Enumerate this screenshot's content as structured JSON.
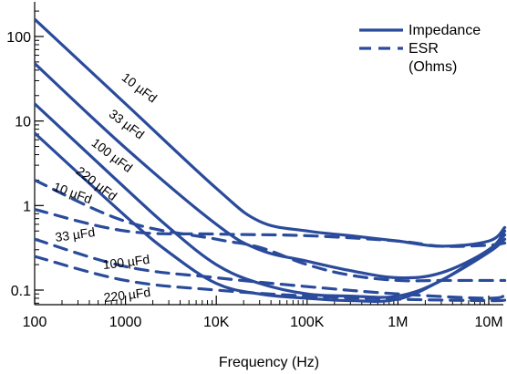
{
  "chart_data": {
    "type": "line",
    "xlabel": "Frequency (Hz)",
    "ylabel": "",
    "x_scale": "log",
    "y_scale": "log",
    "xlim": [
      100,
      15000000
    ],
    "ylim": [
      0.05,
      200
    ],
    "x_ticks": [
      {
        "value": 100,
        "label": "100"
      },
      {
        "value": 1000,
        "label": "1000"
      },
      {
        "value": 10000,
        "label": "10K"
      },
      {
        "value": 100000,
        "label": "100K"
      },
      {
        "value": 1000000,
        "label": "1M"
      },
      {
        "value": 10000000,
        "label": "10M"
      }
    ],
    "y_ticks": [
      {
        "value": 100,
        "label": "100"
      },
      {
        "value": 10,
        "label": "10"
      },
      {
        "value": 1,
        "label": "1"
      },
      {
        "value": 0.1,
        "label": "0.1"
      }
    ],
    "grid": false,
    "legend": {
      "placement": "top-right",
      "entries": [
        {
          "label": "Impedance",
          "style": "solid"
        },
        {
          "label": "ESR",
          "style": "dashed"
        },
        {
          "label": "(Ohms)",
          "style": "none"
        }
      ]
    },
    "color": "#2a4b9b",
    "series": [
      {
        "name": "10 µFd",
        "kind": "impedance",
        "label": "10 µFd",
        "x": [
          100,
          1000,
          10000,
          30000,
          100000,
          300000,
          1000000,
          3000000,
          10000000,
          15000000
        ],
        "y": [
          160,
          16,
          1.6,
          0.65,
          0.5,
          0.44,
          0.38,
          0.33,
          0.38,
          0.55
        ]
      },
      {
        "name": "33 µFd",
        "kind": "impedance",
        "label": "33 µFd",
        "x": [
          100,
          1000,
          10000,
          30000,
          100000,
          300000,
          1000000,
          3000000,
          10000000,
          15000000
        ],
        "y": [
          48,
          4.8,
          0.6,
          0.3,
          0.22,
          0.17,
          0.14,
          0.16,
          0.3,
          0.5
        ]
      },
      {
        "name": "100 µFd",
        "kind": "impedance",
        "label": "100 µFd",
        "x": [
          100,
          1000,
          3000,
          10000,
          30000,
          100000,
          300000,
          1000000,
          3000000,
          10000000,
          15000000
        ],
        "y": [
          16,
          1.6,
          0.55,
          0.2,
          0.12,
          0.09,
          0.085,
          0.085,
          0.13,
          0.3,
          0.45
        ]
      },
      {
        "name": "220 µFd",
        "kind": "impedance",
        "label": "220 µFd",
        "x": [
          100,
          1000,
          3000,
          10000,
          30000,
          100000,
          300000,
          1000000,
          3000000,
          10000000,
          15000000
        ],
        "y": [
          7.2,
          0.75,
          0.28,
          0.12,
          0.09,
          0.08,
          0.075,
          0.078,
          0.13,
          0.28,
          0.4
        ]
      },
      {
        "name": "10 µFd",
        "kind": "esr",
        "label": "10 µFd",
        "x": [
          100,
          1000,
          10000,
          100000,
          1000000,
          3000000,
          10000000,
          15000000
        ],
        "y": [
          0.9,
          0.5,
          0.46,
          0.44,
          0.38,
          0.33,
          0.34,
          0.36
        ]
      },
      {
        "name": "33 µFd",
        "kind": "esr",
        "label": "33 µFd",
        "x": [
          100,
          1000,
          10000,
          30000,
          100000,
          300000,
          1000000,
          3000000,
          10000000,
          15000000
        ],
        "y": [
          2.0,
          0.65,
          0.4,
          0.32,
          0.2,
          0.15,
          0.13,
          0.13,
          0.13,
          0.13
        ]
      },
      {
        "name": "100 µFd",
        "kind": "esr",
        "label": "100 µFd",
        "x": [
          100,
          1000,
          10000,
          100000,
          1000000,
          10000000,
          15000000
        ],
        "y": [
          0.4,
          0.19,
          0.14,
          0.11,
          0.09,
          0.08,
          0.09
        ]
      },
      {
        "name": "220 µFd",
        "kind": "esr",
        "label": "220 µFd",
        "x": [
          100,
          1000,
          10000,
          100000,
          1000000,
          10000000,
          15000000
        ],
        "y": [
          0.25,
          0.13,
          0.1,
          0.085,
          0.078,
          0.075,
          0.076
        ]
      }
    ]
  }
}
